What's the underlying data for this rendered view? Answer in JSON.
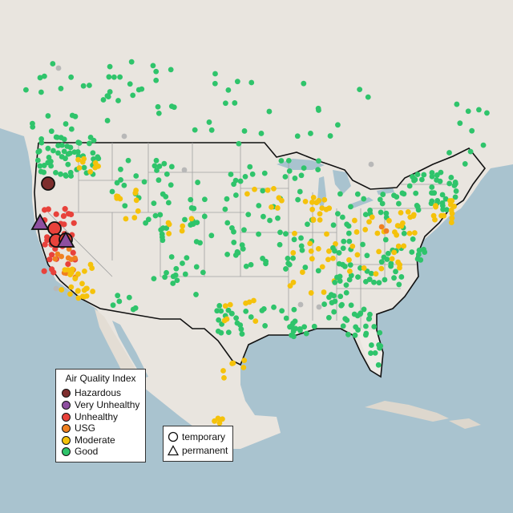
{
  "legend": {
    "title": "Air Quality Index",
    "categories": [
      {
        "label": "Hazardous",
        "color": "#7e2e2e"
      },
      {
        "label": "Very Unhealthy",
        "color": "#8e4fa0"
      },
      {
        "label": "Unhealthy",
        "color": "#e8423b"
      },
      {
        "label": "USG",
        "color": "#f08020"
      },
      {
        "label": "Moderate",
        "color": "#f5c20b"
      },
      {
        "label": "Good",
        "color": "#2fc46b"
      }
    ],
    "shapes": [
      {
        "label": "temporary",
        "icon": "circle-icon"
      },
      {
        "label": "permanent",
        "icon": "triangle-icon"
      }
    ]
  },
  "colors": {
    "water": "#a9c3cf",
    "land": "#efebe6",
    "mexico_land": "#e3ddd4",
    "border": "#111111",
    "state_line": "#9a9a9a",
    "no_data": "#b8b8b8"
  }
}
